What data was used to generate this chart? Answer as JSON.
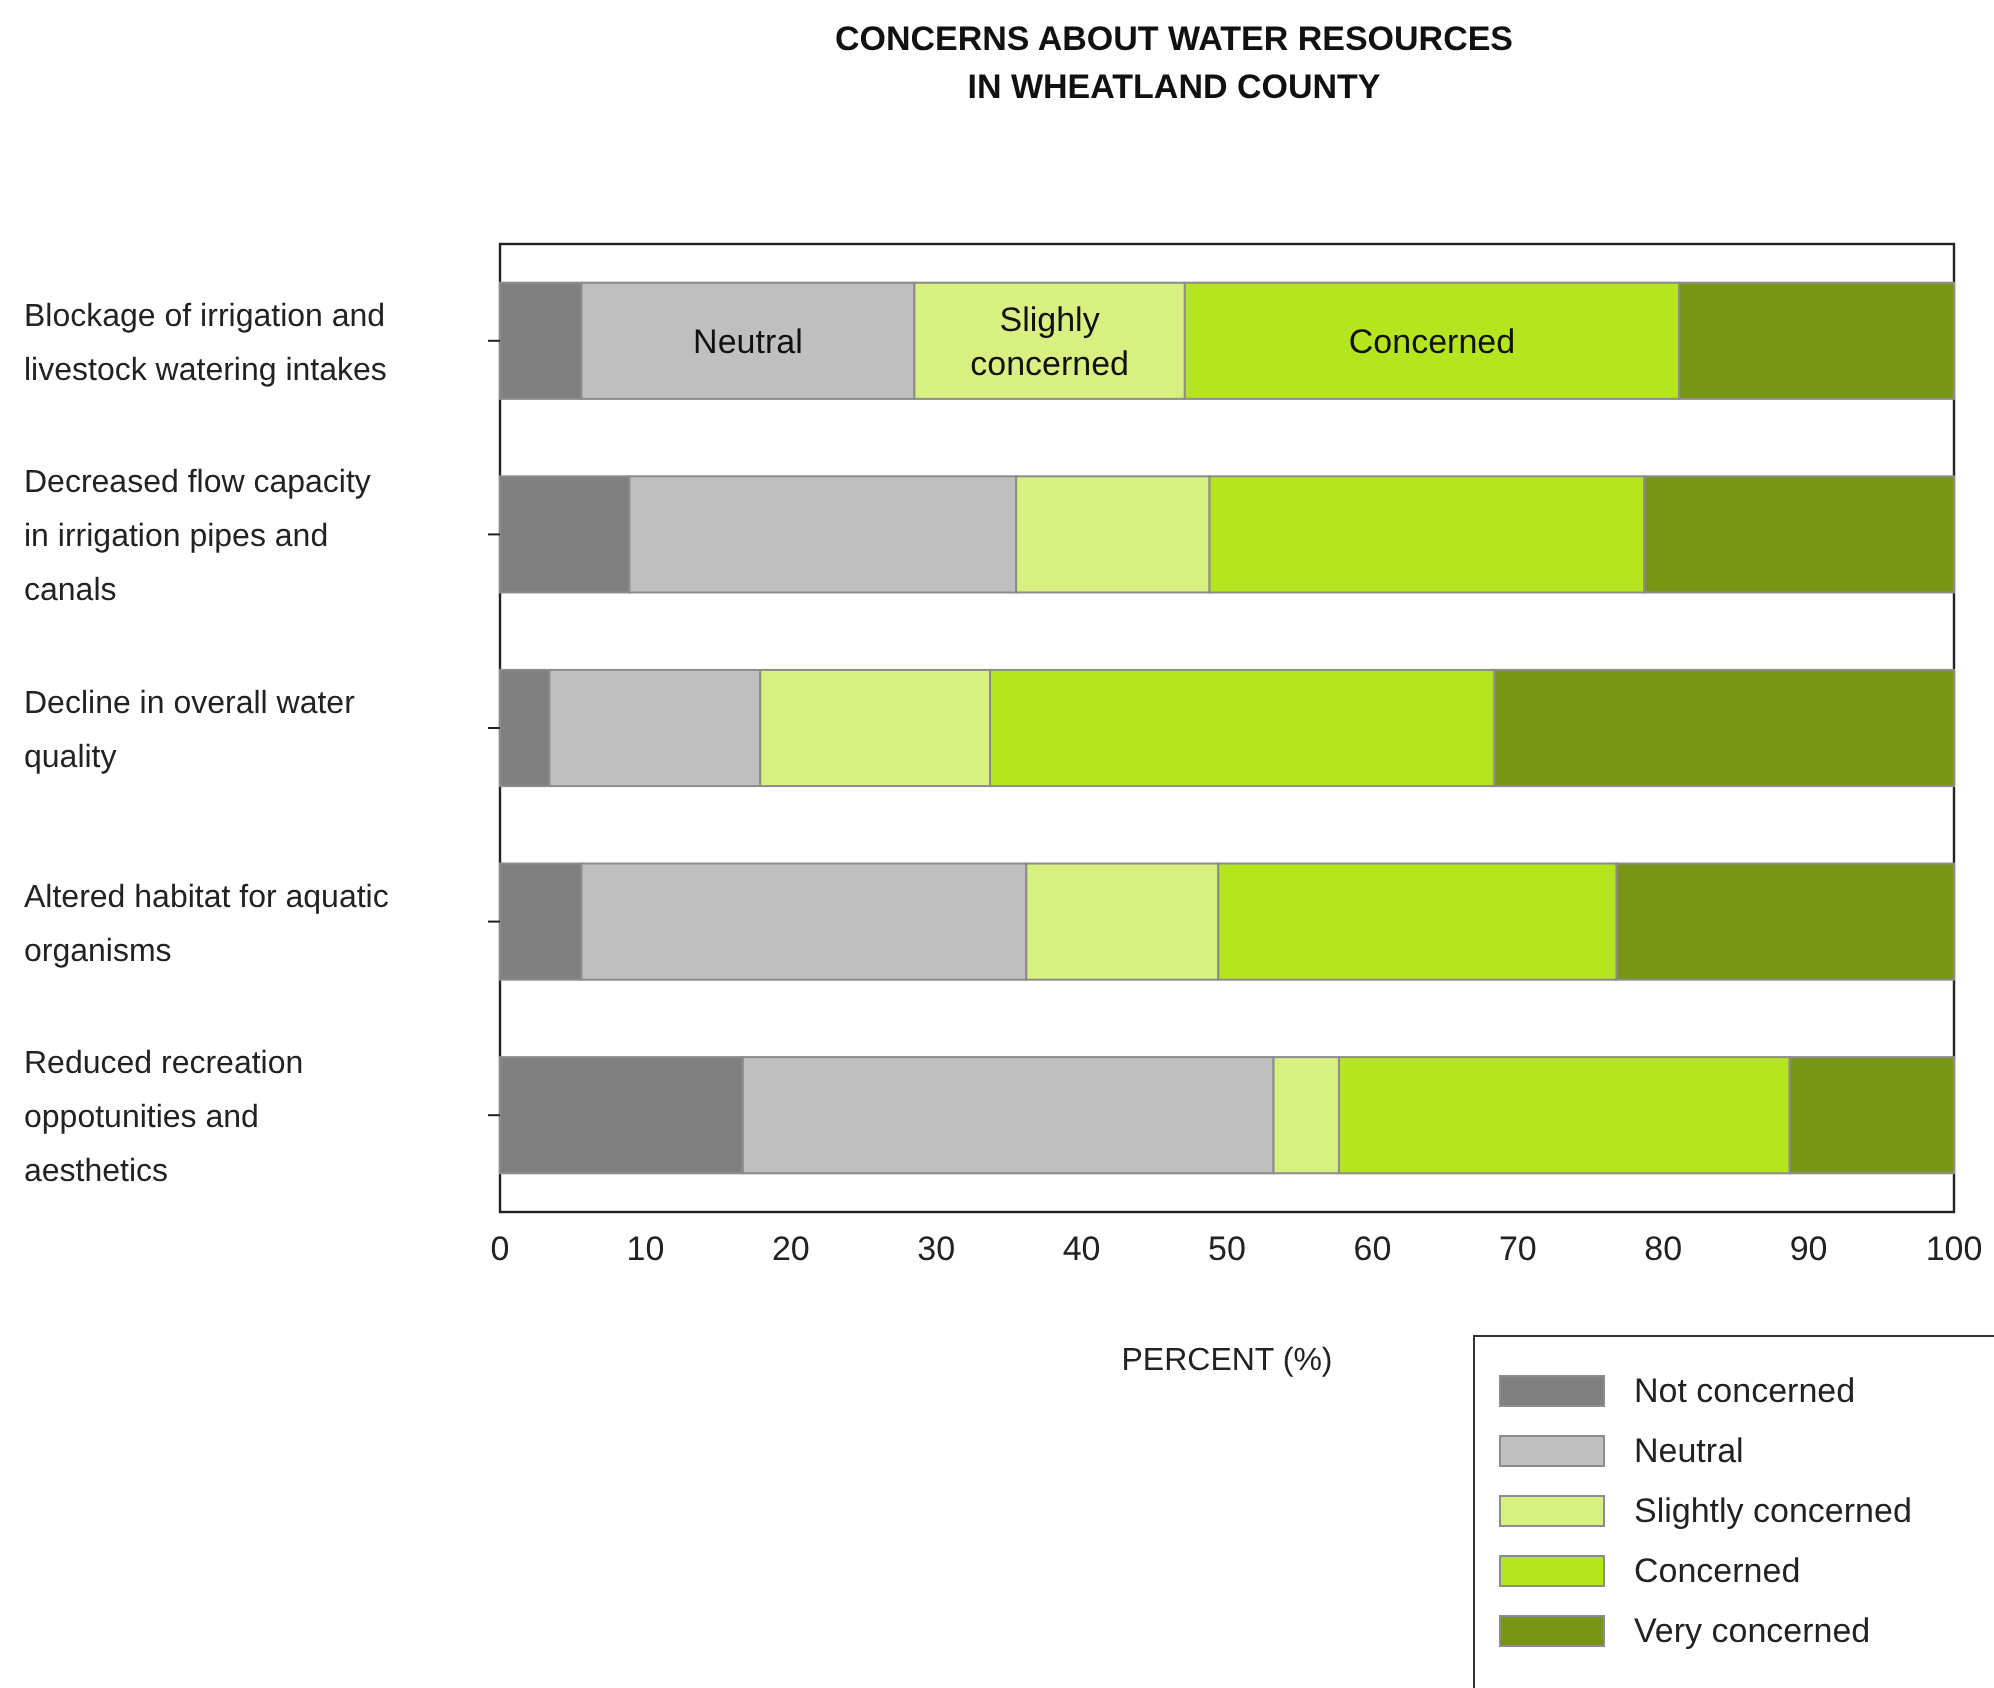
{
  "chart_data": {
    "type": "bar",
    "orientation": "horizontal",
    "stacked": true,
    "title": "CONCERNS ABOUT WATER RESOURCES IN WHEATLAND COUNTY",
    "xlabel": "PERCENT (%)",
    "categories": [
      "Blockage of irrigation and livestock watering intakes",
      "Decreased flow capacity in irrigation pipes and canals",
      "Decline in overall water quality",
      "Altered habitat for aquatic organisms",
      "Reduced recreation oppotunities and aesthetics"
    ],
    "series": [
      {
        "name": "Not concerned",
        "color": "#808080",
        "values": [
          5.6,
          8.9,
          3.4,
          5.6,
          16.7
        ]
      },
      {
        "name": "Neutral",
        "color": "#bfbfbf",
        "values": [
          22.9,
          26.6,
          14.5,
          30.6,
          36.5
        ]
      },
      {
        "name": "Slightly concerned",
        "color": "#d8f081",
        "values": [
          18.6,
          13.3,
          15.8,
          13.2,
          4.5
        ]
      },
      {
        "name": "Concerned",
        "color": "#b5e51f",
        "values": [
          34.0,
          29.9,
          34.7,
          27.4,
          31.0
        ]
      },
      {
        "name": "Very concerned",
        "color": "#789515",
        "values": [
          18.9,
          21.3,
          31.6,
          23.2,
          11.3
        ]
      }
    ],
    "xlim": [
      0,
      100
    ],
    "xticks": [
      0,
      10,
      20,
      30,
      40,
      50,
      60,
      70,
      80,
      90,
      100
    ],
    "annotations": [
      "Neutral",
      "Slighly concerned",
      "Concerned"
    ],
    "legend": "bottom right",
    "grid": false
  }
}
